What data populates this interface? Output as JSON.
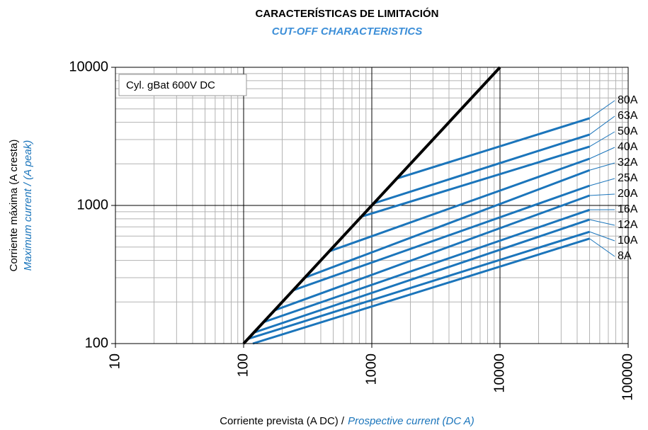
{
  "chart_data": {
    "type": "line",
    "title": "CARACTERÍSTICAS DE LIMITACIÓN",
    "subtitle": "CUT-OFF CHARACTERISTICS",
    "xlabel": "Corriente prevista (A DC) /",
    "xlabel_en": "Prospective current (DC A)",
    "ylabel": "Corriente máxima (A cresta)",
    "ylabel_en": "Maximum current / (A peak)",
    "annotation": "Cyl. gBat 600V DC",
    "xscale": "log",
    "yscale": "log",
    "grid": true,
    "xlim": [
      10,
      100000
    ],
    "ylim": [
      100,
      10000
    ],
    "xticks": [
      10,
      100,
      1000,
      10000,
      100000
    ],
    "yticks": [
      100,
      1000,
      10000
    ],
    "diagonal": {
      "color": "#000000",
      "x": [
        100,
        10000
      ],
      "values": [
        100,
        10000
      ]
    },
    "series": [
      {
        "name": "80A",
        "color": "#1b75bb",
        "x": [
          1565,
          50000
        ],
        "values": [
          1565,
          4275
        ]
      },
      {
        "name": "63A",
        "color": "#1b75bb",
        "x": [
          1035,
          50000
        ],
        "values": [
          1035,
          3260
        ]
      },
      {
        "name": "50A",
        "color": "#1b75bb",
        "x": [
          830,
          50000
        ],
        "values": [
          830,
          2665
        ]
      },
      {
        "name": "40A",
        "color": "#1b75bb",
        "x": [
          465,
          50000
        ],
        "values": [
          465,
          2180
        ]
      },
      {
        "name": "32A",
        "color": "#1b75bb",
        "x": [
          300,
          50000
        ],
        "values": [
          300,
          1800
        ]
      },
      {
        "name": "25A",
        "color": "#1b75bb",
        "x": [
          243,
          50000
        ],
        "values": [
          243,
          1390
        ]
      },
      {
        "name": "20A",
        "color": "#1b75bb",
        "x": [
          174,
          50000
        ],
        "values": [
          174,
          1180
        ]
      },
      {
        "name": "16A",
        "color": "#1b75bb",
        "x": [
          143,
          50000
        ],
        "values": [
          143,
          930
        ]
      },
      {
        "name": "12A",
        "color": "#1b75bb",
        "x": [
          120,
          50000
        ],
        "values": [
          120,
          790
        ]
      },
      {
        "name": "10A",
        "color": "#1b75bb",
        "x": [
          108,
          50000
        ],
        "values": [
          108,
          645
        ]
      },
      {
        "name": "8A",
        "color": "#1b75bb",
        "x": [
          118,
          50000
        ],
        "values": [
          100,
          575
        ]
      }
    ]
  }
}
